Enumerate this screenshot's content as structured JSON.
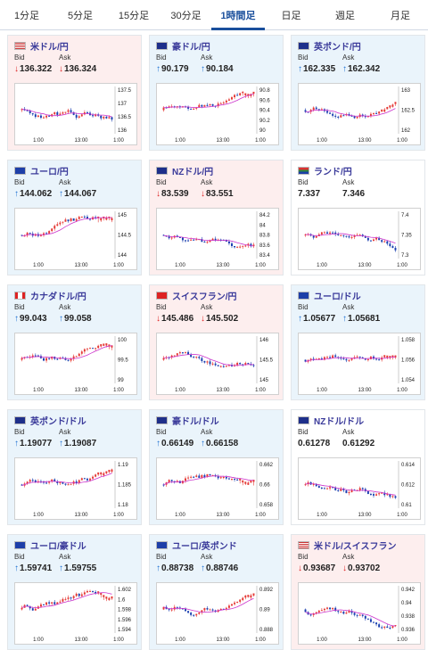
{
  "tabs": [
    {
      "label": "1分足",
      "active": false
    },
    {
      "label": "5分足",
      "active": false
    },
    {
      "label": "15分足",
      "active": false
    },
    {
      "label": "30分足",
      "active": false
    },
    {
      "label": "1時間足",
      "active": true
    },
    {
      "label": "日足",
      "active": false
    },
    {
      "label": "週足",
      "active": false
    },
    {
      "label": "月足",
      "active": false
    }
  ],
  "bid_label": "Bid",
  "ask_label": "Ask",
  "colors": {
    "up": "#1b6fd1",
    "down": "#d22222",
    "candle_up": "#e53935",
    "candle_down": "#1a3fb0",
    "ma_line": "#cc33cc",
    "active_tab": "#1a4f9c"
  },
  "pairs": [
    {
      "name": "米ドル/円",
      "flag": "us-flag-icon",
      "trend": "down",
      "bid": "136.322",
      "ask": "136.324",
      "yticks": [
        "137.5",
        "137",
        "136.5",
        "136"
      ],
      "xticks": [
        "1:00",
        "13:00",
        "1:00"
      ]
    },
    {
      "name": "豪ドル/円",
      "flag": "au-flag-icon",
      "trend": "up",
      "bid": "90.179",
      "ask": "90.184",
      "yticks": [
        "90.8",
        "90.6",
        "90.4",
        "90.2",
        "90"
      ],
      "xticks": [
        "1:00",
        "13:00",
        "1:00"
      ]
    },
    {
      "name": "英ポンド/円",
      "flag": "gb-flag-icon",
      "trend": "up",
      "bid": "162.335",
      "ask": "162.342",
      "yticks": [
        "163",
        "162.5",
        "162"
      ],
      "xticks": [
        "1:00",
        "13:00",
        "1:00"
      ]
    },
    {
      "name": "ユーロ/円",
      "flag": "eu-flag-icon",
      "trend": "up",
      "bid": "144.062",
      "ask": "144.067",
      "yticks": [
        "145",
        "144.5",
        "144"
      ],
      "xticks": [
        "1:00",
        "13:00",
        "1:00"
      ]
    },
    {
      "name": "NZドル/円",
      "flag": "nz-flag-icon",
      "trend": "down",
      "bid": "83.539",
      "ask": "83.551",
      "yticks": [
        "84.2",
        "84",
        "83.8",
        "83.6",
        "83.4"
      ],
      "xticks": [
        "1:00",
        "13:00",
        "1:00"
      ]
    },
    {
      "name": "ランド/円",
      "flag": "za-flag-icon",
      "trend": "flat",
      "bid": "7.337",
      "ask": "7.346",
      "yticks": [
        "7.4",
        "7.35",
        "7.3"
      ],
      "xticks": [
        "1:00",
        "13:00",
        "1:00"
      ]
    },
    {
      "name": "カナダドル/円",
      "flag": "ca-flag-icon",
      "trend": "up",
      "bid": "99.043",
      "ask": "99.058",
      "yticks": [
        "100",
        "99.5",
        "99"
      ],
      "xticks": [
        "1:00",
        "13:00",
        "1:00"
      ]
    },
    {
      "name": "スイスフラン/円",
      "flag": "ch-flag-icon",
      "trend": "down",
      "bid": "145.486",
      "ask": "145.502",
      "yticks": [
        "146",
        "145.5",
        "145"
      ],
      "xticks": [
        "1:00",
        "13:00",
        "1:00"
      ]
    },
    {
      "name": "ユーロ/ドル",
      "flag": "eu-us-flag-icon",
      "trend": "up",
      "bid": "1.05677",
      "ask": "1.05681",
      "yticks": [
        "1.058",
        "1.056",
        "1.054"
      ],
      "xticks": [
        "1:00",
        "13:00",
        "1:00"
      ]
    },
    {
      "name": "英ポンド/ドル",
      "flag": "gb-us-flag-icon",
      "trend": "up",
      "bid": "1.19077",
      "ask": "1.19087",
      "yticks": [
        "1.19",
        "1.185",
        "1.18"
      ],
      "xticks": [
        "1:00",
        "13:00",
        "1:00"
      ]
    },
    {
      "name": "豪ドル/ドル",
      "flag": "au-us-flag-icon",
      "trend": "up",
      "bid": "0.66149",
      "ask": "0.66158",
      "yticks": [
        "0.662",
        "0.66",
        "0.658"
      ],
      "xticks": [
        "1:00",
        "13:00",
        "1:00"
      ]
    },
    {
      "name": "NZドル/ドル",
      "flag": "nz-us-flag-icon",
      "trend": "flat",
      "bid": "0.61278",
      "ask": "0.61292",
      "yticks": [
        "0.614",
        "0.612",
        "0.61"
      ],
      "xticks": [
        "1:00",
        "13:00",
        "1:00"
      ]
    },
    {
      "name": "ユーロ/豪ドル",
      "flag": "eu-au-flag-icon",
      "trend": "up",
      "bid": "1.59741",
      "ask": "1.59755",
      "yticks": [
        "1.602",
        "1.6",
        "1.598",
        "1.596",
        "1.594"
      ],
      "xticks": [
        "1:00",
        "13:00",
        "1:00"
      ]
    },
    {
      "name": "ユーロ/英ポンド",
      "flag": "eu-gb-flag-icon",
      "trend": "up",
      "bid": "0.88738",
      "ask": "0.88746",
      "yticks": [
        "0.892",
        "0.89",
        "0.888"
      ],
      "xticks": [
        "1:00",
        "13:00",
        "1:00"
      ]
    },
    {
      "name": "米ドル/スイスフラン",
      "flag": "us-ch-flag-icon",
      "trend": "down",
      "bid": "0.93687",
      "ask": "0.93702",
      "yticks": [
        "0.942",
        "0.94",
        "0.938",
        "0.936"
      ],
      "xticks": [
        "1:00",
        "13:00",
        "1:00"
      ]
    }
  ]
}
